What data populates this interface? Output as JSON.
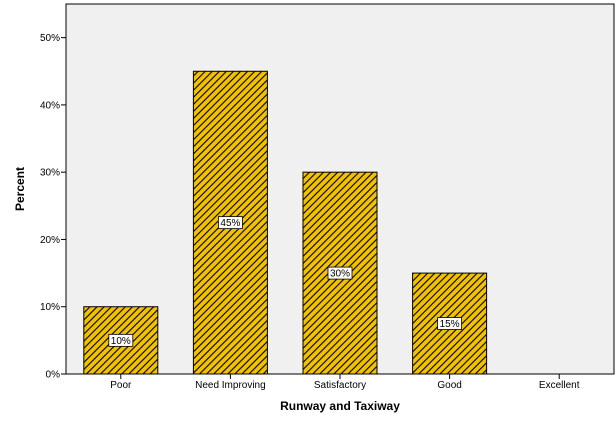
{
  "chart_data": {
    "type": "bar",
    "categories": [
      "Poor",
      "Need Improving",
      "Satisfactory",
      "Good",
      "Excellent"
    ],
    "values": [
      10,
      45,
      30,
      15,
      0
    ],
    "data_labels": [
      "10%",
      "45%",
      "30%",
      "15%",
      ""
    ],
    "title": "",
    "xlabel": "Runway and Taxiway",
    "ylabel": "Percent",
    "ylim": [
      0,
      55
    ],
    "yticks": [
      0,
      10,
      20,
      30,
      40,
      50
    ],
    "ytick_labels": [
      "0%",
      "10%",
      "20%",
      "30%",
      "40%",
      "50%"
    ],
    "grid": false,
    "legend": "none",
    "colors": {
      "plot_background": "#f0f0f0",
      "bar_fill": "#f2c200",
      "bar_hatch": "#000000",
      "bar_stroke": "#000000",
      "label_box": "#ffffff"
    }
  }
}
